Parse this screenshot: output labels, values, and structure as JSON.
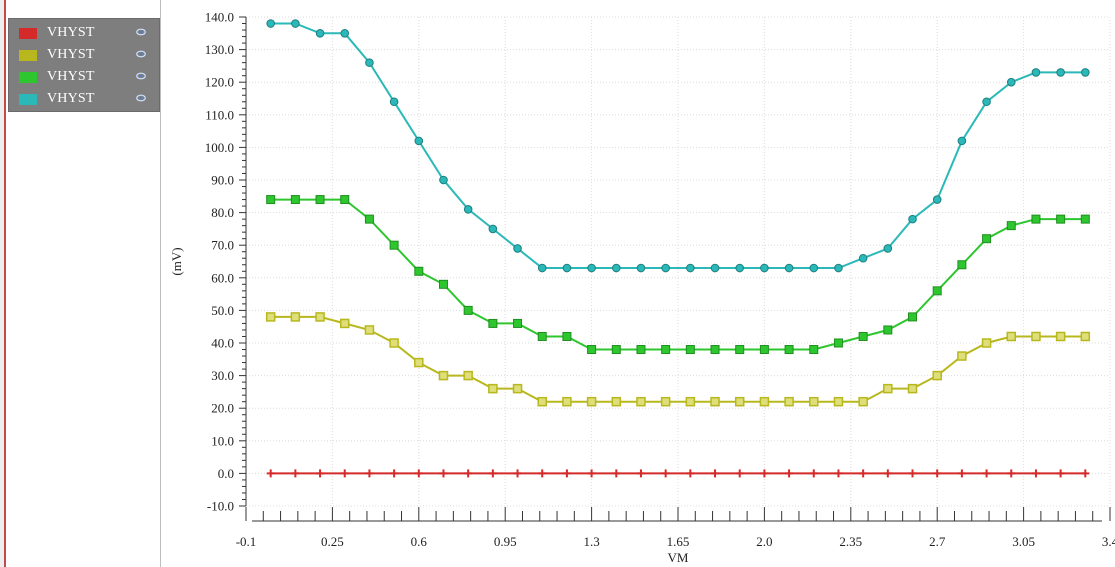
{
  "legend": {
    "items": [
      {
        "label": "VHYST",
        "color": "#d42a2a"
      },
      {
        "label": "VHYST",
        "color": "#b8b81e"
      },
      {
        "label": "VHYST",
        "color": "#2ec62e"
      },
      {
        "label": "VHYST",
        "color": "#2ab8b8"
      }
    ],
    "visibility_icon": "eye-icon"
  },
  "chart_data": {
    "type": "line",
    "xlabel": "VM",
    "ylabel": "(mV)",
    "xlim": [
      -0.1,
      3.4
    ],
    "ylim": [
      -10,
      140
    ],
    "xticks": [
      "-0.1",
      "0.25",
      "0.6",
      "0.95",
      "1.3",
      "1.65",
      "2.0",
      "2.35",
      "2.7",
      "3.05",
      "3.4"
    ],
    "yticks": [
      "-10.0",
      "0.0",
      "10.0",
      "20.0",
      "30.0",
      "40.0",
      "50.0",
      "60.0",
      "70.0",
      "80.0",
      "90.0",
      "100.0",
      "110.0",
      "120.0",
      "130.0",
      "140.0"
    ],
    "grid": true,
    "legend_position": "left",
    "x": [
      0.0,
      0.1,
      0.2,
      0.3,
      0.4,
      0.5,
      0.6,
      0.7,
      0.8,
      0.9,
      1.0,
      1.1,
      1.2,
      1.3,
      1.4,
      1.5,
      1.6,
      1.7,
      1.8,
      1.9,
      2.0,
      2.1,
      2.2,
      2.3,
      2.4,
      2.5,
      2.6,
      2.7,
      2.8,
      2.9,
      3.0,
      3.1,
      3.2,
      3.3
    ],
    "series": [
      {
        "name": "VHYST",
        "color": "#d42a2a",
        "marker": "plus",
        "values": [
          0,
          0,
          0,
          0,
          0,
          0,
          0,
          0,
          0,
          0,
          0,
          0,
          0,
          0,
          0,
          0,
          0,
          0,
          0,
          0,
          0,
          0,
          0,
          0,
          0,
          0,
          0,
          0,
          0,
          0,
          0,
          0,
          0,
          0
        ]
      },
      {
        "name": "VHYST",
        "color": "#b8b81e",
        "marker": "square",
        "values": [
          48,
          48,
          48,
          46,
          44,
          40,
          34,
          30,
          30,
          26,
          26,
          22,
          22,
          22,
          22,
          22,
          22,
          22,
          22,
          22,
          22,
          22,
          22,
          22,
          22,
          26,
          26,
          30,
          36,
          40,
          42,
          42,
          42,
          42
        ]
      },
      {
        "name": "VHYST",
        "color": "#2ec62e",
        "marker": "square-filled",
        "values": [
          84,
          84,
          84,
          84,
          78,
          70,
          62,
          58,
          50,
          46,
          46,
          42,
          42,
          38,
          38,
          38,
          38,
          38,
          38,
          38,
          38,
          38,
          38,
          40,
          42,
          44,
          48,
          56,
          64,
          72,
          76,
          78,
          78,
          78
        ]
      },
      {
        "name": "VHYST",
        "color": "#2ab8b8",
        "marker": "circle",
        "values": [
          138,
          138,
          135,
          135,
          126,
          114,
          102,
          90,
          81,
          75,
          69,
          63,
          63,
          63,
          63,
          63,
          63,
          63,
          63,
          63,
          63,
          63,
          63,
          63,
          66,
          69,
          78,
          84,
          102,
          114,
          120,
          123,
          123,
          123
        ]
      }
    ]
  }
}
